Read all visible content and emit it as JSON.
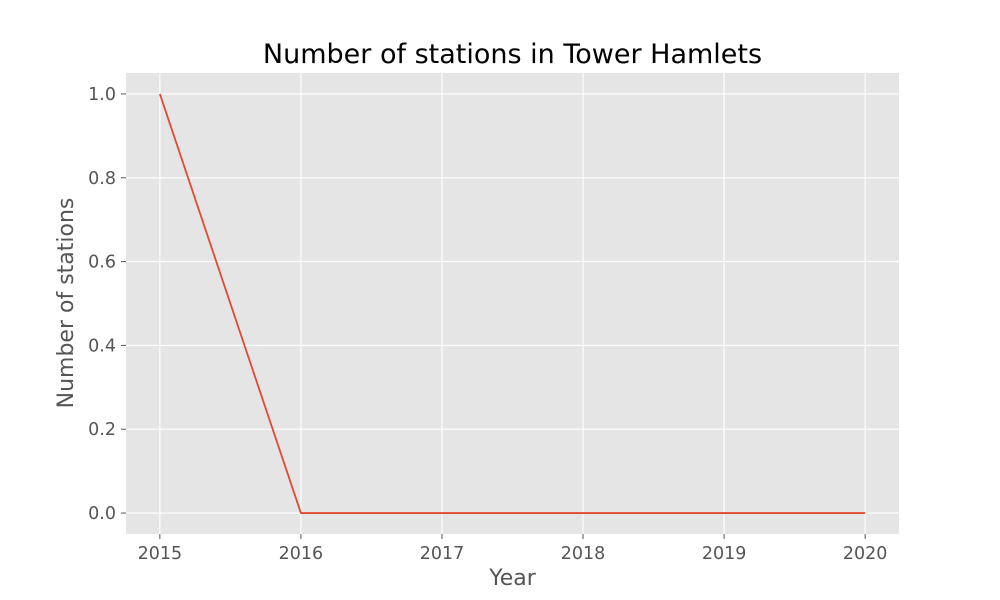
{
  "chart_data": {
    "type": "line",
    "title": "Number of stations in Tower Hamlets",
    "xlabel": "Year",
    "ylabel": "Number of stations",
    "x": [
      2015,
      2016,
      2017,
      2018,
      2019,
      2020
    ],
    "series": [
      {
        "values": [
          1,
          0,
          0,
          0,
          0,
          0
        ]
      }
    ],
    "xlim": [
      2014.76,
      2020.24
    ],
    "ylim": [
      -0.05,
      1.05
    ],
    "xticks": [
      2015,
      2016,
      2017,
      2018,
      2019,
      2020
    ],
    "yticks": [
      0.0,
      0.2,
      0.4,
      0.6,
      0.8,
      1.0
    ],
    "ytick_labels": [
      "0.0",
      "0.2",
      "0.4",
      "0.6",
      "0.8",
      "1.0"
    ],
    "grid": true,
    "colors": {
      "background": "#e5e5e5",
      "grid": "#ffffff",
      "line": "#e24a33",
      "text": "#555555"
    }
  }
}
